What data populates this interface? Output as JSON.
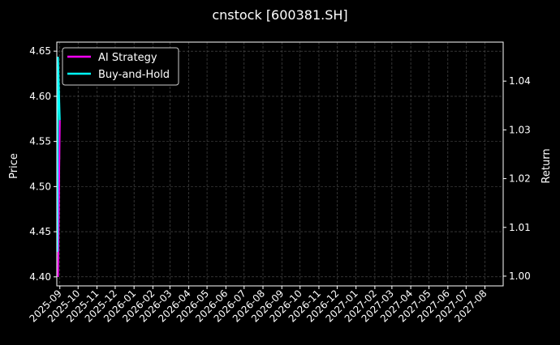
{
  "chart_data": {
    "type": "line",
    "title": "cnstock [600381.SH]",
    "ylabel_left": "Price",
    "ylabel_right": "Return",
    "ylim_left": [
      4.39,
      4.66
    ],
    "ylim_right": [
      0.998,
      1.048
    ],
    "yticks_left": [
      "4.40",
      "4.45",
      "4.50",
      "4.55",
      "4.60",
      "4.65"
    ],
    "yticks_right": [
      "1.00",
      "1.01",
      "1.02",
      "1.03",
      "1.04"
    ],
    "xlim": [
      "2025-08-27",
      "2027-08-31"
    ],
    "xticks": [
      "2025-09",
      "2025-10",
      "2025-11",
      "2025-12",
      "2026-01",
      "2026-02",
      "2026-03",
      "2026-04",
      "2026-05",
      "2026-06",
      "2026-07",
      "2026-08",
      "2026-09",
      "2026-10",
      "2026-11",
      "2026-12",
      "2027-01",
      "2027-02",
      "2027-03",
      "2027-04",
      "2027-05",
      "2027-06",
      "2027-07",
      "2027-08"
    ],
    "grid": true,
    "legend_placement": "top-left",
    "price_series": {
      "color": "#2ca02c",
      "x": [
        "2025-08-28",
        "2025-08-29",
        "2025-09-01"
      ],
      "y": [
        4.4,
        4.64,
        4.53
      ]
    },
    "series": [
      {
        "name": "AI Strategy",
        "axis": "right",
        "color": "#ff00ff",
        "x": [
          "2025-08-28",
          "2025-08-29",
          "2025-09-01"
        ],
        "y": [
          1.0,
          1.0,
          1.032
        ]
      },
      {
        "name": "Buy-and-Hold",
        "axis": "right",
        "color": "#00ffff",
        "x": [
          "2025-08-28",
          "2025-08-29",
          "2025-09-01"
        ],
        "y": [
          1.005,
          1.045,
          1.032
        ]
      }
    ]
  }
}
